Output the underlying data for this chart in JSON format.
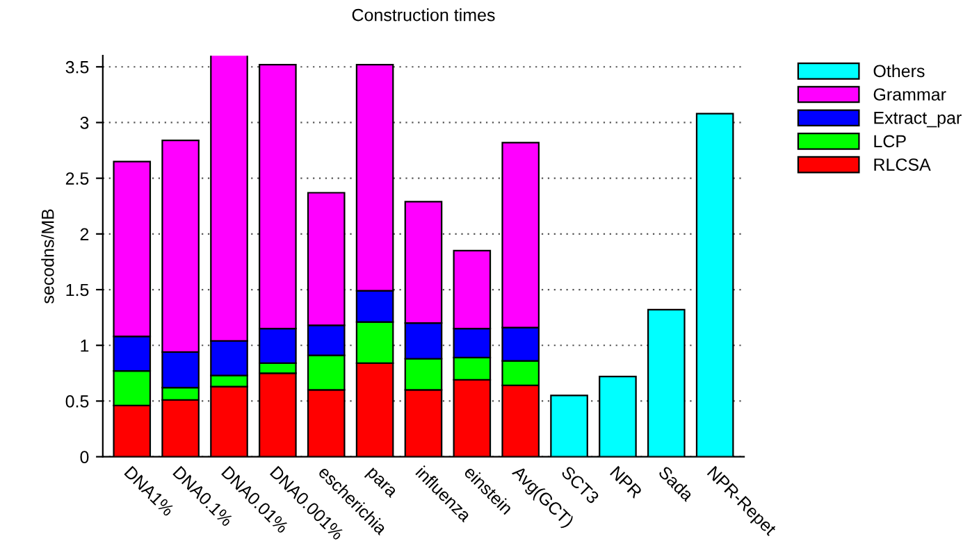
{
  "chart_data": {
    "type": "bar",
    "stacked": true,
    "title": "Construction times",
    "ylabel": "secodns/MB",
    "categories": [
      "DNA1%",
      "DNA0.1%",
      "DNA0.01%",
      "DNA0.001%",
      "escherichia",
      "para",
      "influenza",
      "einstein",
      "Avg(GCT)",
      "SCT3",
      "NPR",
      "Sada",
      "NPR-Repet"
    ],
    "series": [
      {
        "name": "RLCSA",
        "color": "#ff0000",
        "values": [
          0.46,
          0.51,
          0.63,
          0.75,
          0.6,
          0.84,
          0.6,
          0.69,
          0.64,
          null,
          null,
          null,
          null
        ]
      },
      {
        "name": "LCP",
        "color": "#00ff00",
        "values": [
          0.31,
          0.11,
          0.1,
          0.09,
          0.31,
          0.37,
          0.28,
          0.2,
          0.22,
          null,
          null,
          null,
          null
        ]
      },
      {
        "name": "Extract_par",
        "color": "#0000ff",
        "values": [
          0.31,
          0.32,
          0.31,
          0.31,
          0.27,
          0.28,
          0.32,
          0.26,
          0.3,
          null,
          null,
          null,
          null
        ]
      },
      {
        "name": "Grammar",
        "color": "#ff00ff",
        "values": [
          1.57,
          1.9,
          2.57,
          2.37,
          1.19,
          2.03,
          1.09,
          0.7,
          1.66,
          null,
          null,
          null,
          null
        ]
      },
      {
        "name": "Others",
        "color": "#00ffff",
        "values": [
          null,
          null,
          null,
          null,
          null,
          null,
          null,
          null,
          null,
          0.55,
          0.72,
          1.32,
          3.08
        ]
      }
    ],
    "ylim": [
      0,
      3.6
    ],
    "yticks": [
      0,
      0.5,
      1,
      1.5,
      2,
      2.5,
      3,
      3.5
    ],
    "grid": "y",
    "legend": "top right"
  }
}
